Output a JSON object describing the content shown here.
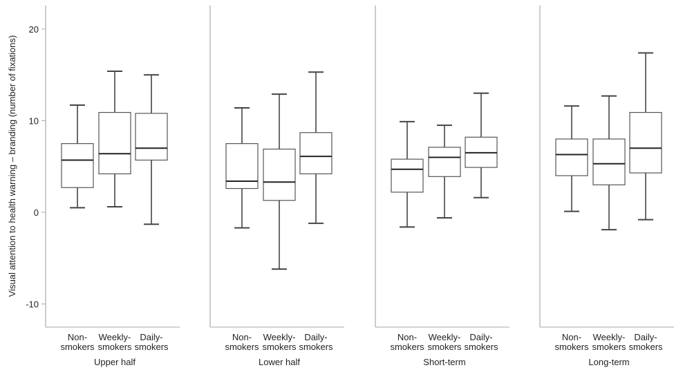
{
  "chart_data": {
    "type": "boxplot",
    "ylabel": "Visual attention to health warning – branding (number of fixations)",
    "ylim": [
      -12.5,
      22.5
    ],
    "yticks": [
      20,
      10,
      0,
      -10
    ],
    "ytick_labels": [
      "20",
      "10",
      "0",
      "-10"
    ],
    "categories": [
      "Non-\nsmokers",
      "Weekly-\nsmokers",
      "Daily-\nsmokers"
    ],
    "category_lines": [
      [
        "Non-",
        "smokers"
      ],
      [
        "Weekly-",
        "smokers"
      ],
      [
        "Daily-",
        "smokers"
      ]
    ],
    "colors": {
      "box_fill": "#ffffff",
      "box_stroke": "#555555",
      "whisker": "#444444",
      "median": "#222222",
      "divider": "#aaaaaa"
    },
    "panels": [
      {
        "name": "Upper half",
        "boxes": [
          {
            "category": "Non-smokers",
            "whisker_low": 0.5,
            "q1": 2.7,
            "median": 5.7,
            "q3": 7.5,
            "whisker_high": 11.7
          },
          {
            "category": "Weekly-smokers",
            "whisker_low": 0.6,
            "q1": 4.2,
            "median": 6.4,
            "q3": 10.9,
            "whisker_high": 15.4
          },
          {
            "category": "Daily-smokers",
            "whisker_low": -1.3,
            "q1": 5.7,
            "median": 7.0,
            "q3": 10.8,
            "whisker_high": 15.0
          }
        ]
      },
      {
        "name": "Lower half",
        "boxes": [
          {
            "category": "Non-smokers",
            "whisker_low": -1.7,
            "q1": 2.6,
            "median": 3.4,
            "q3": 7.5,
            "whisker_high": 11.4
          },
          {
            "category": "Weekly-smokers",
            "whisker_low": -6.2,
            "q1": 1.3,
            "median": 3.3,
            "q3": 6.9,
            "whisker_high": 12.9
          },
          {
            "category": "Daily-smokers",
            "whisker_low": -1.2,
            "q1": 4.2,
            "median": 6.1,
            "q3": 8.7,
            "whisker_high": 15.3
          }
        ]
      },
      {
        "name": "Short-term",
        "boxes": [
          {
            "category": "Non-smokers",
            "whisker_low": -1.6,
            "q1": 2.2,
            "median": 4.7,
            "q3": 5.8,
            "whisker_high": 9.9
          },
          {
            "category": "Weekly-smokers",
            "whisker_low": -0.6,
            "q1": 3.9,
            "median": 6.0,
            "q3": 7.1,
            "whisker_high": 9.5
          },
          {
            "category": "Daily-smokers",
            "whisker_low": 1.6,
            "q1": 4.9,
            "median": 6.5,
            "q3": 8.2,
            "whisker_high": 13.0
          }
        ]
      },
      {
        "name": "Long-term",
        "boxes": [
          {
            "category": "Non-smokers",
            "whisker_low": 0.1,
            "q1": 4.0,
            "median": 6.3,
            "q3": 8.0,
            "whisker_high": 11.6
          },
          {
            "category": "Weekly-smokers",
            "whisker_low": -1.9,
            "q1": 3.0,
            "median": 5.3,
            "q3": 8.0,
            "whisker_high": 12.7
          },
          {
            "category": "Daily-smokers",
            "whisker_low": -0.8,
            "q1": 4.3,
            "median": 7.0,
            "q3": 10.9,
            "whisker_high": 17.4
          }
        ]
      }
    ]
  }
}
